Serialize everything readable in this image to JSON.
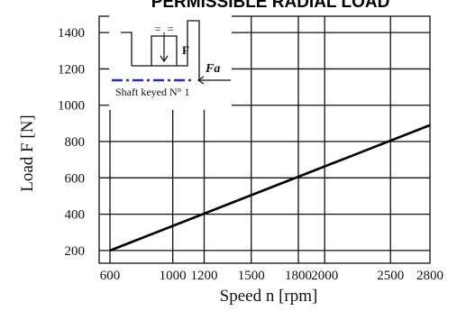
{
  "chart_data": {
    "type": "line",
    "title": "PERMISSIBLE RADIAL LOAD",
    "xlabel": "Speed  n  [rpm]",
    "ylabel": "Load  F  [N]",
    "x_ticks": [
      600,
      1000,
      1200,
      1500,
      1800,
      2000,
      2500,
      2800
    ],
    "y_ticks": [
      200,
      400,
      600,
      800,
      1000,
      1200,
      1400
    ],
    "xlim": [
      600,
      2800
    ],
    "ylim": [
      130,
      1490
    ],
    "grid": true,
    "series": [
      {
        "x": [
          600,
          2800
        ],
        "y": [
          200,
          890
        ],
        "color": "#000000"
      }
    ],
    "inset": {
      "force_label": "F",
      "axial_label": "Fa",
      "caption": "Shaft  keyed  N° 1",
      "equal_marks": [
        "=",
        "="
      ],
      "axis_color": "#1f2fbf"
    }
  }
}
